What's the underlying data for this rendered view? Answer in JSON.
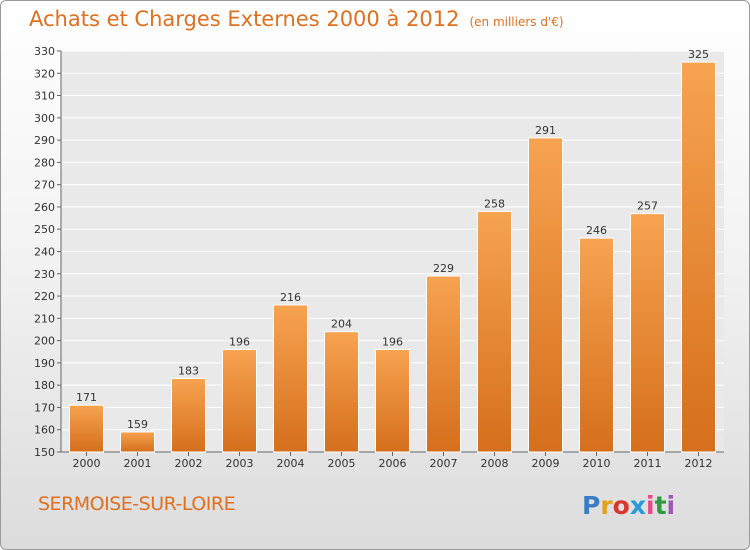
{
  "title": "Achats et Charges Externes 2000 à 2012",
  "unit": "(en milliers d'€)",
  "place": "SERMOISE-SUR-LOIRE",
  "logo": {
    "letters": [
      "P",
      "r",
      "o",
      "x",
      "i",
      "t",
      "i"
    ],
    "colors": [
      "#3a7dc4",
      "#e6a11a",
      "#d8362f",
      "#2a9bd8",
      "#e64a8a",
      "#2f9a3f",
      "#9b59b6"
    ]
  },
  "colors": {
    "bar_top": "#f7a350",
    "bar_bottom": "#d56f1c",
    "title": "#e07020"
  },
  "chart_data": {
    "type": "bar",
    "categories": [
      "2000",
      "2001",
      "2002",
      "2003",
      "2004",
      "2005",
      "2006",
      "2007",
      "2008",
      "2009",
      "2010",
      "2011",
      "2012"
    ],
    "values": [
      171,
      159,
      183,
      196,
      216,
      204,
      196,
      229,
      258,
      291,
      246,
      257,
      325
    ],
    "ylim": [
      150,
      330
    ],
    "yticks": [
      150,
      160,
      170,
      180,
      190,
      200,
      210,
      220,
      230,
      240,
      250,
      260,
      270,
      280,
      290,
      300,
      310,
      320,
      330
    ],
    "grid": true
  }
}
